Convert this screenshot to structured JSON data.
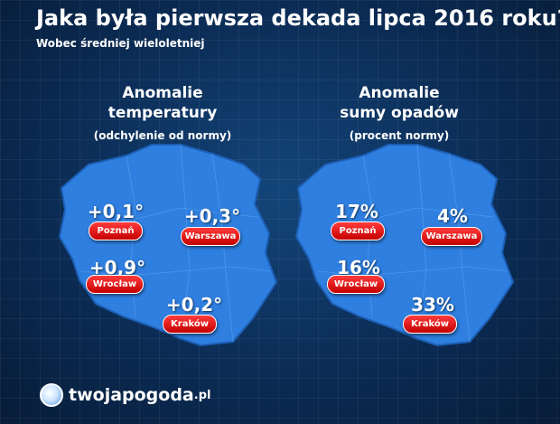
{
  "header": {
    "title": "Jaka była pierwsza dekada lipca 2016 roku?",
    "subtitle": "Wobec średniej wieloletniej"
  },
  "temperature": {
    "heading_line1": "Anomalie",
    "heading_line2": "temperatury",
    "heading_line3": "(odchylenie od normy)",
    "cities": [
      {
        "name": "Poznań",
        "value": "+0,1°"
      },
      {
        "name": "Warszawa",
        "value": "+0,3°"
      },
      {
        "name": "Wrocław",
        "value": "+0,9°"
      },
      {
        "name": "Kraków",
        "value": "+0,2°"
      }
    ]
  },
  "precipitation": {
    "heading_line1": "Anomalie",
    "heading_line2": "sumy opadów",
    "heading_line3": "(procent normy)",
    "cities": [
      {
        "name": "Poznań",
        "value": "17%"
      },
      {
        "name": "Warszawa",
        "value": "4%"
      },
      {
        "name": "Wrocław",
        "value": "16%"
      },
      {
        "name": "Kraków",
        "value": "33%"
      }
    ]
  },
  "colors": {
    "map_fill": "#2f7fe0",
    "badge": "#e00000"
  },
  "logo": {
    "name": "twojapogoda",
    "tld": ".pl"
  }
}
